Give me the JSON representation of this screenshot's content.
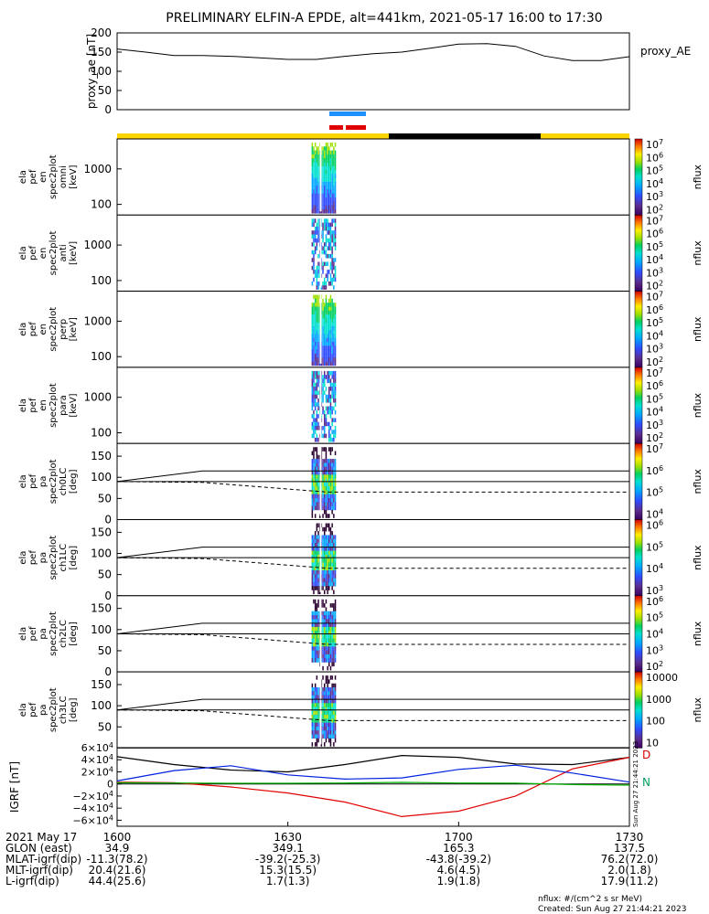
{
  "title": "PRELIMINARY ELFIN-A EPDE, alt=441km, 2021-05-17 16:00 to 17:30",
  "colors": {
    "sci_zone": "#ffd400",
    "eclipse": "#000000",
    "mode_blue": "#1e90ff",
    "mode_red": "#e00000",
    "bx": "#000000",
    "by": "#e00000",
    "bz": "#0020e0",
    "bt": "#00b000"
  },
  "colorbar": {
    "label": "nflux",
    "stops": [
      "#ffffff",
      "#2a0a5e",
      "#5b2d8f",
      "#2f4cff",
      "#00a8ff",
      "#00e0d0",
      "#00d060",
      "#a0e000",
      "#ffef00",
      "#ff9000",
      "#ff2000",
      "#c00000"
    ]
  },
  "chart_data": [
    {
      "type": "line",
      "id": "proxy_ae",
      "ylabel": "proxy_ae [nT]",
      "legend": "proxy_AE",
      "ylim": [
        0,
        200
      ],
      "yticks": [
        "0",
        "50",
        "100",
        "150",
        "200"
      ],
      "x": [
        0,
        5,
        10,
        15,
        20,
        25,
        30,
        35,
        40,
        45,
        50,
        55,
        60,
        65,
        70,
        75,
        80,
        85,
        90
      ],
      "values": [
        158,
        150,
        141,
        141,
        139,
        135,
        131,
        131,
        139,
        146,
        150,
        160,
        171,
        172,
        165,
        140,
        128,
        128,
        138
      ]
    },
    {
      "type": "heatmap",
      "id": "en_omni",
      "ylabel": [
        "ela",
        "pef",
        "en",
        "spec2plot",
        "omni",
        "[keV]"
      ],
      "ylim": [
        50,
        7000
      ],
      "yscale": "log",
      "yticks": [
        "100",
        "1000"
      ],
      "colorbar_ticks": [
        "10^2",
        "10^3",
        "10^4",
        "10^5",
        "10^6",
        "10^7"
      ],
      "x_span_min": [
        34,
        38
      ]
    },
    {
      "type": "heatmap",
      "id": "en_anti",
      "ylabel": [
        "ela",
        "pef",
        "en",
        "spec2plot",
        "anti",
        "[keV]"
      ],
      "ylim": [
        50,
        7000
      ],
      "yscale": "log",
      "yticks": [
        "100",
        "1000"
      ],
      "colorbar_ticks": [
        "10^2",
        "10^3",
        "10^4",
        "10^5",
        "10^6",
        "10^7"
      ],
      "x_span_min": [
        34,
        38
      ]
    },
    {
      "type": "heatmap",
      "id": "en_perp",
      "ylabel": [
        "ela",
        "pef",
        "en",
        "spec2plot",
        "perp",
        "[keV]"
      ],
      "ylim": [
        50,
        7000
      ],
      "yscale": "log",
      "yticks": [
        "100",
        "1000"
      ],
      "colorbar_ticks": [
        "10^2",
        "10^3",
        "10^4",
        "10^5",
        "10^6",
        "10^7"
      ],
      "x_span_min": [
        34,
        38
      ]
    },
    {
      "type": "heatmap",
      "id": "en_para",
      "ylabel": [
        "ela",
        "pef",
        "en",
        "spec2plot",
        "para",
        "[keV]"
      ],
      "ylim": [
        50,
        7000
      ],
      "yscale": "log",
      "yticks": [
        "100",
        "1000"
      ],
      "colorbar_ticks": [
        "10^2",
        "10^3",
        "10^4",
        "10^5",
        "10^6",
        "10^7"
      ],
      "x_span_min": [
        34,
        38
      ]
    },
    {
      "type": "heatmap",
      "id": "pa_ch0LC",
      "ylabel": [
        "ela",
        "pef",
        "pa",
        "spec2plot",
        "ch0LC",
        "[deg]"
      ],
      "ylim": [
        0,
        180
      ],
      "yticks": [
        "0",
        "50",
        "100",
        "150"
      ],
      "colorbar_ticks": [
        "10^4",
        "10^5",
        "10^6",
        "10^7"
      ],
      "x_span_min": [
        34,
        38
      ]
    },
    {
      "type": "heatmap",
      "id": "pa_ch1LC",
      "ylabel": [
        "ela",
        "pef",
        "pa",
        "spec2plot",
        "ch1LC",
        "[deg]"
      ],
      "ylim": [
        0,
        180
      ],
      "yticks": [
        "0",
        "50",
        "100",
        "150"
      ],
      "colorbar_ticks": [
        "10^3",
        "10^4",
        "10^5",
        "10^6"
      ],
      "x_span_min": [
        34,
        38
      ]
    },
    {
      "type": "heatmap",
      "id": "pa_ch2LC",
      "ylabel": [
        "ela",
        "pef",
        "pa",
        "spec2plot",
        "ch2LC",
        "[deg]"
      ],
      "ylim": [
        0,
        180
      ],
      "yticks": [
        "0",
        "50",
        "100",
        "150"
      ],
      "colorbar_ticks": [
        "10^2",
        "10^3",
        "10^4",
        "10^5",
        "10^6"
      ],
      "x_span_min": [
        34,
        38
      ]
    },
    {
      "type": "heatmap",
      "id": "pa_ch3LC",
      "ylabel": [
        "ela",
        "pef",
        "pa",
        "spec2plot",
        "ch3LC",
        "[deg]"
      ],
      "ylim": [
        0,
        180
      ],
      "yticks": [
        "50",
        "100",
        "150"
      ],
      "colorbar_ticks": [
        "10",
        "100",
        "1000",
        "10000"
      ],
      "x_span_min": [
        34,
        38
      ]
    },
    {
      "type": "line",
      "id": "igrf",
      "ylabel": "IGRF [nT]",
      "ylim": [
        -70000,
        60000
      ],
      "yticks": [
        "-6x10^4",
        "-4x10^4",
        "-2x10^4",
        "0",
        "2x10^4",
        "4x10^4",
        "6x10^4"
      ],
      "legend": [
        "D",
        "N"
      ],
      "x": [
        0,
        10,
        20,
        30,
        40,
        50,
        60,
        70,
        80,
        90
      ],
      "series": [
        {
          "name": "D",
          "values": [
            45000,
            32000,
            23000,
            20000,
            32000,
            47000,
            44000,
            33000,
            32000,
            44000
          ]
        },
        {
          "name": "N",
          "values": [
            3000,
            2000,
            -5000,
            -15000,
            -30000,
            -54000,
            -45000,
            -20000,
            25000,
            44000
          ]
        },
        {
          "name": "",
          "values": [
            5000,
            22000,
            30000,
            15000,
            8000,
            10000,
            24000,
            31000,
            18000,
            3000
          ]
        },
        {
          "name": "",
          "values": [
            2000,
            1500,
            1000,
            1000,
            1500,
            2500,
            1500,
            1200,
            -1000,
            -2000
          ]
        }
      ]
    }
  ],
  "x_axis": {
    "row_labels": [
      "2021 May 17",
      "GLON (east)",
      "MLAT-igrf(dip)",
      "MLT-igrf(dip)",
      "L-igrf(dip)"
    ],
    "ticks": [
      "1600",
      "1630",
      "1700",
      "1730"
    ],
    "glon": [
      "34.9",
      "349.1",
      "165.3",
      "137.5"
    ],
    "mlat": [
      "-11.3(78.2)",
      "-39.2(-25.3)",
      "-43.8(-39.2)",
      "76.2(72.0)"
    ],
    "mlt": [
      "20.4(21.6)",
      "15.3(15.5)",
      "4.6(4.5)",
      "2.0(1.8)"
    ],
    "lval": [
      "44.4(25.6)",
      "1.7(1.3)",
      "1.9(1.8)",
      "17.9(11.2)"
    ]
  },
  "footer": {
    "units": "nflux: #/(cm^2 s sr MeV)",
    "created": "Created: Sun Aug 27 21:44:21 2023",
    "side_stamp": "Sun Aug 27 21:44:21 2023"
  }
}
